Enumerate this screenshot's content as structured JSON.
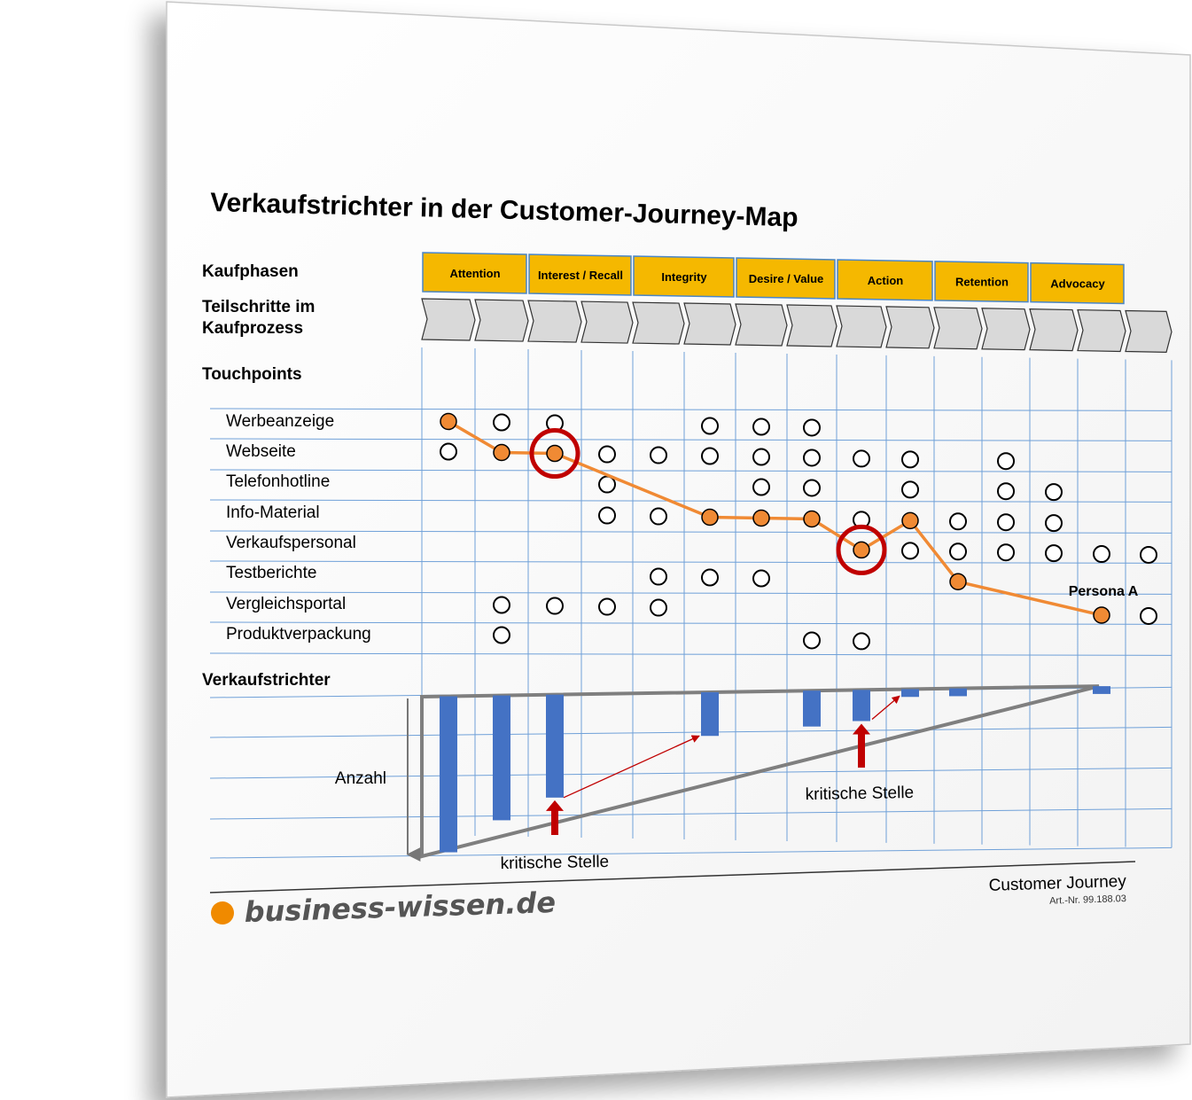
{
  "title": "Verkaufstrichter in der Customer-Journey-Map",
  "row_headers": {
    "kaufphasen": "Kaufphasen",
    "teilschritte_line1": "Teilschritte im",
    "teilschritte_line2": "Kaufprozess",
    "touchpoints": "Touchpoints",
    "verkaufstrichter": "Verkaufstrichter"
  },
  "phases": [
    {
      "label": "Attention",
      "steps": 2
    },
    {
      "label": "Interest / Recall",
      "steps": 2
    },
    {
      "label": "Integrity",
      "steps": 2
    },
    {
      "label": "Desire / Value",
      "steps": 2
    },
    {
      "label": "Action",
      "steps": 2
    },
    {
      "label": "Retention",
      "steps": 2
    },
    {
      "label": "Advocacy",
      "steps": 2
    }
  ],
  "touchpoints": [
    "Werbeanzeige",
    "Webseite",
    "Telefonhotline",
    "Info-Material",
    "Verkaufspersonal",
    "Testberichte",
    "Vergleichsportal",
    "Produktverpackung"
  ],
  "touchpoint_matrix": [
    [
      0,
      0
    ],
    [
      1,
      0
    ],
    [
      2,
      0
    ],
    [
      5,
      0
    ],
    [
      6,
      0
    ],
    [
      7,
      0
    ],
    [
      0,
      1
    ],
    [
      1,
      1
    ],
    [
      2,
      1
    ],
    [
      3,
      1
    ],
    [
      4,
      1
    ],
    [
      5,
      1
    ],
    [
      6,
      1
    ],
    [
      7,
      1
    ],
    [
      8,
      1
    ],
    [
      9,
      1
    ],
    [
      11,
      1
    ],
    [
      3,
      2
    ],
    [
      6,
      2
    ],
    [
      7,
      2
    ],
    [
      9,
      2
    ],
    [
      11,
      2
    ],
    [
      12,
      2
    ],
    [
      3,
      3
    ],
    [
      4,
      3
    ],
    [
      5,
      3
    ],
    [
      6,
      3
    ],
    [
      7,
      3
    ],
    [
      8,
      3
    ],
    [
      9,
      3
    ],
    [
      10,
      3
    ],
    [
      11,
      3
    ],
    [
      12,
      3
    ],
    [
      8,
      4
    ],
    [
      9,
      4
    ],
    [
      10,
      4
    ],
    [
      11,
      4
    ],
    [
      12,
      4
    ],
    [
      13,
      4
    ],
    [
      14,
      4
    ],
    [
      4,
      5
    ],
    [
      5,
      5
    ],
    [
      6,
      5
    ],
    [
      10,
      5
    ],
    [
      1,
      6
    ],
    [
      2,
      6
    ],
    [
      3,
      6
    ],
    [
      4,
      6
    ],
    [
      13,
      6
    ],
    [
      14,
      6
    ],
    [
      1,
      7
    ],
    [
      7,
      7
    ],
    [
      8,
      7
    ]
  ],
  "persona_path": {
    "label": "Persona A",
    "points": [
      [
        0,
        0
      ],
      [
        1,
        1
      ],
      [
        2,
        1
      ],
      [
        5,
        3
      ],
      [
        6,
        3
      ],
      [
        7,
        3
      ],
      [
        8,
        4
      ],
      [
        9,
        3
      ],
      [
        10,
        5
      ],
      [
        13,
        6
      ]
    ],
    "color": "#f08a34"
  },
  "critical_highlights": [
    [
      2,
      1
    ],
    [
      8,
      4
    ]
  ],
  "funnel": {
    "axis_label": "Anzahl",
    "critical_label_1": "kritische Stelle",
    "critical_label_2": "kritische Stelle",
    "bars": [
      {
        "column": 0,
        "value": 100
      },
      {
        "column": 1,
        "value": 80
      },
      {
        "column": 2,
        "value": 66
      },
      {
        "column": 5,
        "value": 28
      },
      {
        "column": 7,
        "value": 23
      },
      {
        "column": 8,
        "value": 20
      },
      {
        "column": 9,
        "value": 5
      },
      {
        "column": 10,
        "value": 5
      },
      {
        "column": 13,
        "value": 5
      }
    ],
    "bar_color": "#4472c4"
  },
  "footer": {
    "brand": "business-wissen.de",
    "doc_title": "Customer Journey",
    "art_nr": "Art.-Nr. 99.188.03"
  },
  "colors": {
    "phase_fill": "#f5b800",
    "phase_border": "#4a86c8",
    "grid": "#6fa0d8",
    "critical": "#c00000",
    "brand_dot": "#f08a00"
  }
}
